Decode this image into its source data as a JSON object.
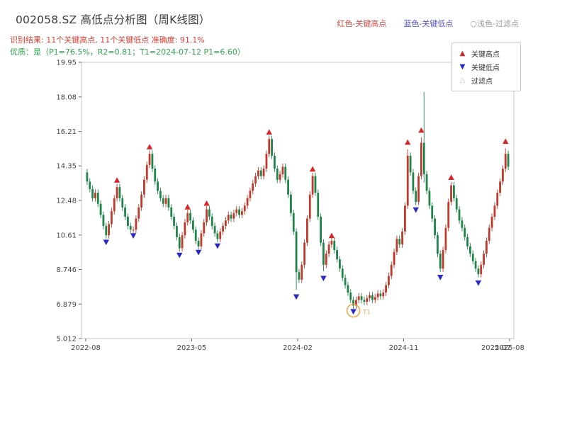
{
  "header": {
    "title": "002058.SZ 高低点分析图（周K线图）",
    "legend_inline": [
      {
        "label": "红色-关键高点",
        "color": "#cf4a45"
      },
      {
        "label": "蓝色-关键低点",
        "color": "#5055c8"
      },
      {
        "label": "○浅色-过滤点",
        "color": "#9a9a9a"
      }
    ],
    "result_line": "识别结果: 11个关键高点, 11个关键低点  准确度: 91.1%",
    "result_color": "#e23c33",
    "quality_line": "优质：是（P1=76.5%，R2=0.81；T1=2024-07-12 P1=6.60）",
    "quality_color": "#2fa84f"
  },
  "chart_data": {
    "type": "candlestick",
    "title": "002058.SZ 高低点分析图（周K线图）",
    "x_start": "2022-08",
    "x_end": "2025-08",
    "frequency": "weekly",
    "ylim": [
      5.012,
      19.95
    ],
    "y_ticks": [
      {
        "v": 5.012,
        "label": "5.012"
      },
      {
        "v": 6.879,
        "label": "6.879"
      },
      {
        "v": 8.746,
        "label": "8.746"
      },
      {
        "v": 10.61,
        "label": "10.61"
      },
      {
        "v": 12.48,
        "label": "12.48"
      },
      {
        "v": 14.35,
        "label": "14.35"
      },
      {
        "v": 16.21,
        "label": "16.21"
      },
      {
        "v": 18.08,
        "label": "18.08"
      },
      {
        "v": 19.95,
        "label": "19.95"
      }
    ],
    "x_ticks": [
      {
        "week": 0,
        "label": "2022-08"
      },
      {
        "week": 39,
        "label": "2023-05"
      },
      {
        "week": 78,
        "label": "2024-02"
      },
      {
        "week": 117,
        "label": "2024-11"
      },
      {
        "week": 156,
        "label": "2025-08"
      }
    ],
    "extra_x_label": {
      "week": 151,
      "label": "2025-07"
    },
    "first_open": 14.0,
    "wick": 0.18,
    "closes": [
      13.5,
      13.1,
      12.6,
      12.9,
      12.3,
      11.7,
      11.1,
      10.6,
      11.2,
      11.9,
      12.6,
      13.2,
      12.6,
      12.1,
      11.6,
      11.1,
      10.9,
      10.9,
      11.5,
      12.1,
      12.8,
      13.6,
      14.4,
      15.0,
      14.2,
      13.5,
      13.0,
      12.6,
      12.3,
      12.6,
      12.1,
      11.6,
      11.1,
      10.5,
      9.9,
      10.6,
      11.3,
      11.8,
      11.4,
      10.9,
      10.3,
      10.0,
      10.7,
      11.3,
      12.0,
      11.6,
      11.1,
      10.7,
      10.4,
      10.8,
      11.1,
      11.4,
      11.7,
      11.5,
      11.8,
      12.0,
      11.7,
      11.9,
      12.2,
      12.6,
      13.0,
      13.4,
      13.8,
      14.1,
      13.8,
      14.2,
      15.0,
      15.8,
      14.9,
      14.2,
      13.6,
      13.9,
      14.3,
      13.6,
      12.8,
      11.8,
      10.8,
      8.6,
      8.2,
      9.0,
      10.2,
      11.5,
      12.8,
      13.8,
      12.9,
      11.6,
      10.2,
      9.0,
      9.6,
      10.1,
      10.3,
      9.8,
      9.3,
      8.8,
      8.3,
      7.9,
      7.5,
      7.1,
      6.8,
      7.1,
      7.3,
      7.1,
      7.0,
      7.2,
      7.35,
      7.1,
      7.25,
      7.45,
      7.3,
      7.5,
      7.9,
      8.4,
      9.0,
      9.7,
      10.4,
      10.1,
      10.8,
      12.2,
      14.9,
      14.0,
      13.0,
      12.4,
      13.8,
      15.6,
      13.9,
      13.0,
      12.2,
      11.5,
      10.6,
      9.6,
      8.8,
      9.8,
      11.0,
      12.4,
      13.3,
      12.6,
      12.0,
      11.4,
      11.0,
      10.5,
      10.0,
      9.6,
      9.2,
      8.8,
      8.5,
      9.0,
      9.6,
      10.3,
      11.0,
      11.6,
      12.2,
      12.9,
      13.5,
      14.2,
      15.0,
      14.3
    ],
    "wick_overrides": {
      "124": {
        "high": 18.35,
        "low": 13.45
      }
    },
    "key_highs": [
      {
        "week": 11,
        "price": 13.45
      },
      {
        "week": 23,
        "price": 15.25
      },
      {
        "week": 37,
        "price": 12.0
      },
      {
        "week": 44,
        "price": 12.2
      },
      {
        "week": 67,
        "price": 16.05
      },
      {
        "week": 83,
        "price": 14.05
      },
      {
        "week": 90,
        "price": 10.45
      },
      {
        "week": 118,
        "price": 15.5
      },
      {
        "week": 123,
        "price": 16.15
      },
      {
        "week": 134,
        "price": 13.6
      },
      {
        "week": 154,
        "price": 15.55
      }
    ],
    "key_lows": [
      {
        "week": 7,
        "price": 10.35
      },
      {
        "week": 17,
        "price": 10.7
      },
      {
        "week": 34,
        "price": 9.65
      },
      {
        "week": 41,
        "price": 9.8
      },
      {
        "week": 48,
        "price": 10.15
      },
      {
        "week": 77,
        "price": 7.4
      },
      {
        "week": 87,
        "price": 8.4
      },
      {
        "week": 98,
        "price": 6.6
      },
      {
        "week": 121,
        "price": 12.1
      },
      {
        "week": 130,
        "price": 8.45
      },
      {
        "week": 144,
        "price": 8.15
      }
    ],
    "highlight": {
      "week": 98,
      "price": 6.6,
      "label": "T1",
      "color": "#e8a33d"
    },
    "legend": [
      {
        "label": "关键高点",
        "glyph": "▲",
        "color": "#d62728"
      },
      {
        "label": "关键低点",
        "glyph": "▼",
        "color": "#2929c8"
      },
      {
        "label": "过滤点",
        "glyph": "△",
        "color": "#c5c5c5"
      }
    ],
    "colors": {
      "up": "#c0392b",
      "down": "#1e8449",
      "key_high": "#d62728",
      "key_low": "#2929c8",
      "axis_text": "#444444",
      "border": "#c4c4c4"
    },
    "stats": {
      "num_key_highs": 11,
      "num_key_lows": 11,
      "accuracy_pct": 91.1,
      "p1_pct": 76.5,
      "r2": 0.81,
      "t1_date": "2024-07-12",
      "t1_price": 6.6
    }
  }
}
